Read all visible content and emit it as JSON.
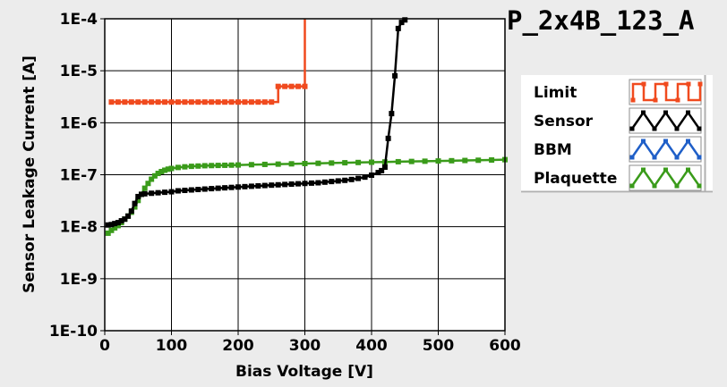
{
  "chart_data": {
    "type": "line",
    "title": "P_2x4B_123_A",
    "xlabel": "Bias Voltage [V]",
    "ylabel": "Sensor Leakage Current [A]",
    "xlim": [
      0,
      600
    ],
    "ylim": [
      1e-10,
      0.0001
    ],
    "yscale": "log",
    "grid": true,
    "legend_placement": "right",
    "x_ticks": [
      {
        "value": 0,
        "label": "0"
      },
      {
        "value": 100,
        "label": "100"
      },
      {
        "value": 200,
        "label": "200"
      },
      {
        "value": 300,
        "label": "300"
      },
      {
        "value": 400,
        "label": "400"
      },
      {
        "value": 500,
        "label": "500"
      },
      {
        "value": 600,
        "label": "600"
      }
    ],
    "y_ticks": [
      {
        "value": 1e-10,
        "label": "1E-10"
      },
      {
        "value": 1e-09,
        "label": "1E-9"
      },
      {
        "value": 1e-08,
        "label": "1E-8"
      },
      {
        "value": 1e-07,
        "label": "1E-7"
      },
      {
        "value": 1e-06,
        "label": "1E-6"
      },
      {
        "value": 1e-05,
        "label": "1E-5"
      },
      {
        "value": 0.0001,
        "label": "1E-4"
      }
    ],
    "series": [
      {
        "name": "Limit",
        "color": "#f04a1e",
        "step": true,
        "markers": true,
        "x": [
          10,
          20,
          30,
          40,
          50,
          60,
          70,
          80,
          90,
          100,
          110,
          120,
          130,
          140,
          150,
          160,
          170,
          180,
          190,
          200,
          210,
          220,
          230,
          240,
          250,
          260,
          270,
          280,
          290,
          300
        ],
        "y": [
          2.5e-06,
          2.5e-06,
          2.5e-06,
          2.5e-06,
          2.5e-06,
          2.5e-06,
          2.5e-06,
          2.5e-06,
          2.5e-06,
          2.5e-06,
          2.5e-06,
          2.5e-06,
          2.5e-06,
          2.5e-06,
          2.5e-06,
          2.5e-06,
          2.5e-06,
          2.5e-06,
          2.5e-06,
          2.5e-06,
          2.5e-06,
          2.5e-06,
          2.5e-06,
          2.5e-06,
          2.5e-06,
          5e-06,
          5e-06,
          5e-06,
          5e-06,
          5e-06
        ],
        "end_x": 300,
        "end_y": 0.0001
      },
      {
        "name": "Sensor",
        "color": "#000000",
        "step": false,
        "markers": true,
        "x": [
          5,
          10,
          15,
          20,
          25,
          30,
          35,
          40,
          45,
          50,
          55,
          60,
          70,
          80,
          90,
          100,
          110,
          120,
          130,
          140,
          150,
          160,
          170,
          180,
          190,
          200,
          210,
          220,
          230,
          240,
          250,
          260,
          270,
          280,
          290,
          300,
          310,
          320,
          330,
          340,
          350,
          360,
          370,
          380,
          390,
          400,
          410,
          415,
          420,
          425,
          430,
          435,
          440,
          445,
          450
        ],
        "y": [
          1.08e-08,
          1.1e-08,
          1.15e-08,
          1.2e-08,
          1.3e-08,
          1.4e-08,
          1.6e-08,
          2e-08,
          2.8e-08,
          3.8e-08,
          4.2e-08,
          4.3e-08,
          4.4e-08,
          4.5e-08,
          4.6e-08,
          4.7e-08,
          4.9e-08,
          5e-08,
          5.1e-08,
          5.2e-08,
          5.3e-08,
          5.4e-08,
          5.5e-08,
          5.6e-08,
          5.7e-08,
          5.8e-08,
          5.9e-08,
          6e-08,
          6.1e-08,
          6.2e-08,
          6.3e-08,
          6.4e-08,
          6.5e-08,
          6.6e-08,
          6.7e-08,
          6.8e-08,
          6.9e-08,
          7e-08,
          7.2e-08,
          7.4e-08,
          7.6e-08,
          7.8e-08,
          8.1e-08,
          8.5e-08,
          9e-08,
          9.8e-08,
          1.1e-07,
          1.2e-07,
          1.4e-07,
          5e-07,
          1.5e-06,
          8e-06,
          6.5e-05,
          8.5e-05,
          9.5e-05
        ]
      },
      {
        "name": "BBM",
        "color": "#1f5fc8",
        "step": false,
        "markers": true,
        "x": [],
        "y": []
      },
      {
        "name": "Plaquette",
        "color": "#3a9b1a",
        "step": false,
        "markers": true,
        "x": [
          5,
          10,
          15,
          20,
          25,
          30,
          35,
          40,
          45,
          50,
          55,
          60,
          65,
          70,
          75,
          80,
          85,
          90,
          95,
          100,
          110,
          120,
          130,
          140,
          150,
          160,
          170,
          180,
          190,
          200,
          220,
          240,
          260,
          280,
          300,
          320,
          340,
          360,
          380,
          400,
          420,
          440,
          460,
          480,
          500,
          520,
          540,
          560,
          580,
          600
        ],
        "y": [
          7.5e-09,
          8.5e-09,
          9.5e-09,
          1.05e-08,
          1.2e-08,
          1.4e-08,
          1.6e-08,
          1.9e-08,
          2.4e-08,
          3.2e-08,
          4.2e-08,
          5.5e-08,
          6.8e-08,
          8.2e-08,
          9.5e-08,
          1.06e-07,
          1.15e-07,
          1.22e-07,
          1.28e-07,
          1.32e-07,
          1.38e-07,
          1.42e-07,
          1.45e-07,
          1.47e-07,
          1.49e-07,
          1.5e-07,
          1.51e-07,
          1.52e-07,
          1.53e-07,
          1.54e-07,
          1.56e-07,
          1.58e-07,
          1.6e-07,
          1.62e-07,
          1.64e-07,
          1.66e-07,
          1.68e-07,
          1.7e-07,
          1.72e-07,
          1.74e-07,
          1.76e-07,
          1.78e-07,
          1.8e-07,
          1.82e-07,
          1.84e-07,
          1.86e-07,
          1.88e-07,
          1.9e-07,
          1.92e-07,
          1.95e-07
        ]
      }
    ]
  }
}
